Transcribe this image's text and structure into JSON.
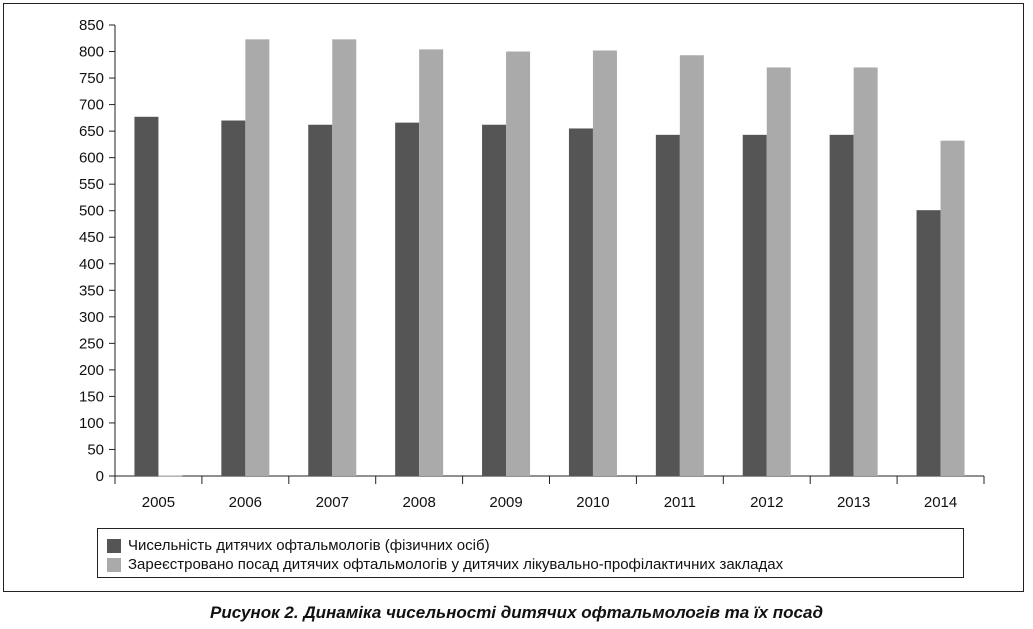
{
  "caption": "Рисунок 2.  Динаміка чисельності дитячих офтальмологів та їх посад",
  "colors": {
    "series1": "#555555",
    "series2": "#aaaaaa",
    "axis": "#222222"
  },
  "chart_data": {
    "type": "bar",
    "title": "",
    "xlabel": "",
    "ylabel": "",
    "categories": [
      "2005",
      "2006",
      "2007",
      "2008",
      "2009",
      "2010",
      "2011",
      "2012",
      "2013",
      "2014"
    ],
    "yticks": [
      "0",
      "50",
      "100",
      "150",
      "200",
      "250",
      "300",
      "350",
      "400",
      "450",
      "500",
      "550",
      "600",
      "650",
      "700",
      "750",
      "800",
      "850"
    ],
    "ylim": [
      0,
      850
    ],
    "grid": false,
    "legend_position": "bottom",
    "series": [
      {
        "name": "Чисельність дитячих офтальмологів (фізичних осіб)",
        "values": [
          677,
          670,
          662,
          666,
          662,
          655,
          643,
          643,
          643,
          501
        ]
      },
      {
        "name": "Зареєстровано посад дитячих офтальмологів у дитячих лікувально-профілактичних закладах",
        "values": [
          1,
          823,
          823,
          804,
          800,
          802,
          793,
          770,
          770,
          632
        ]
      }
    ]
  }
}
